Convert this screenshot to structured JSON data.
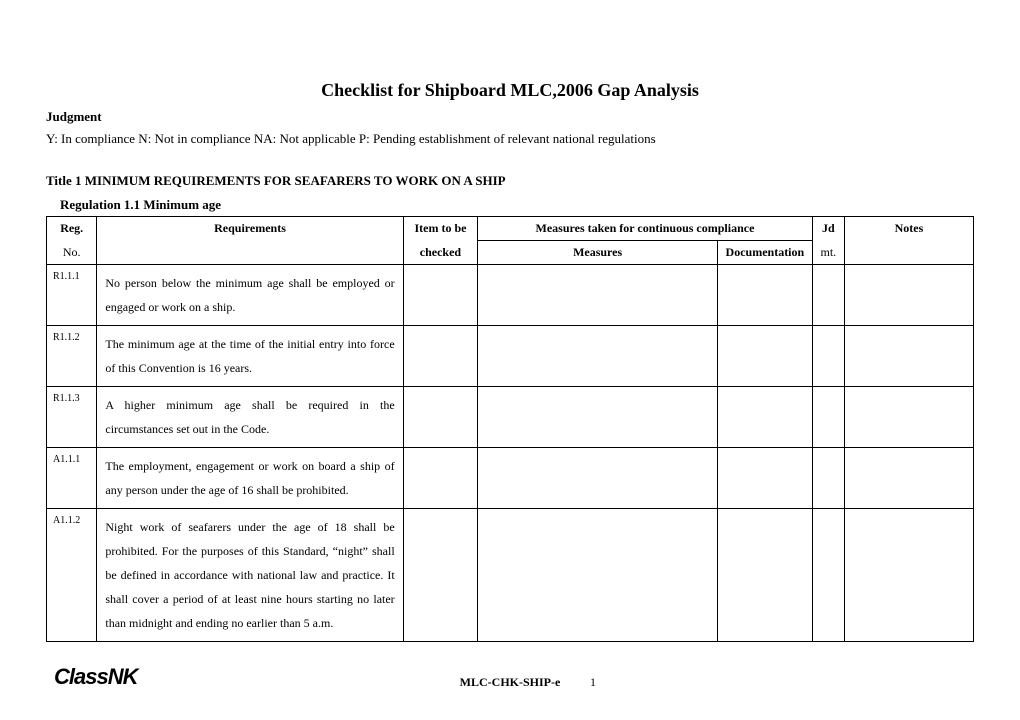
{
  "title": "Checklist for Shipboard MLC,2006 Gap Analysis",
  "judgment": {
    "label": "Judgment",
    "legend": "Y: In compliance   N: Not in compliance   NA: Not applicable   P: Pending establishment of relevant national regulations"
  },
  "section_title": "Title 1 MINIMUM REQUIREMENTS FOR SEAFARERS TO WORK ON A SHIP",
  "regulation_title": "Regulation 1.1 Minimum age",
  "table": {
    "headers": {
      "reg_top": "Reg.",
      "reg_bottom": "No.",
      "requirements": "Requirements",
      "item_top": "Item to be",
      "item_bottom": "checked",
      "measures_group": "Measures taken for continuous compliance",
      "measures": "Measures",
      "documentation": "Documentation",
      "jd_top": "Jd",
      "jd_bottom": "mt.",
      "notes": "Notes"
    },
    "rows": [
      {
        "reg": "R1.1.1",
        "requirement": "No person below the minimum age shall be employed or engaged or work on a ship."
      },
      {
        "reg": "R1.1.2",
        "requirement": "The minimum age at the time of the initial entry into force of this Convention is 16 years."
      },
      {
        "reg": "R1.1.3",
        "requirement": "A higher minimum age shall be required in the circumstances set out in the Code."
      },
      {
        "reg": "A1.1.1",
        "requirement": "The employment, engagement or work on board a ship of any person under the age of 16 shall be prohibited."
      },
      {
        "reg": "A1.1.2",
        "requirement": "Night work of seafarers under the age of 18 shall be prohibited. For the purposes of this Standard, “night” shall be defined in accordance with national law and practice. It shall cover a period of at least nine hours starting no later than midnight and ending no earlier than 5 a.m."
      }
    ]
  },
  "footer": {
    "logo": "ClassNK",
    "code": "MLC-CHK-SHIP-e",
    "page": "1"
  }
}
